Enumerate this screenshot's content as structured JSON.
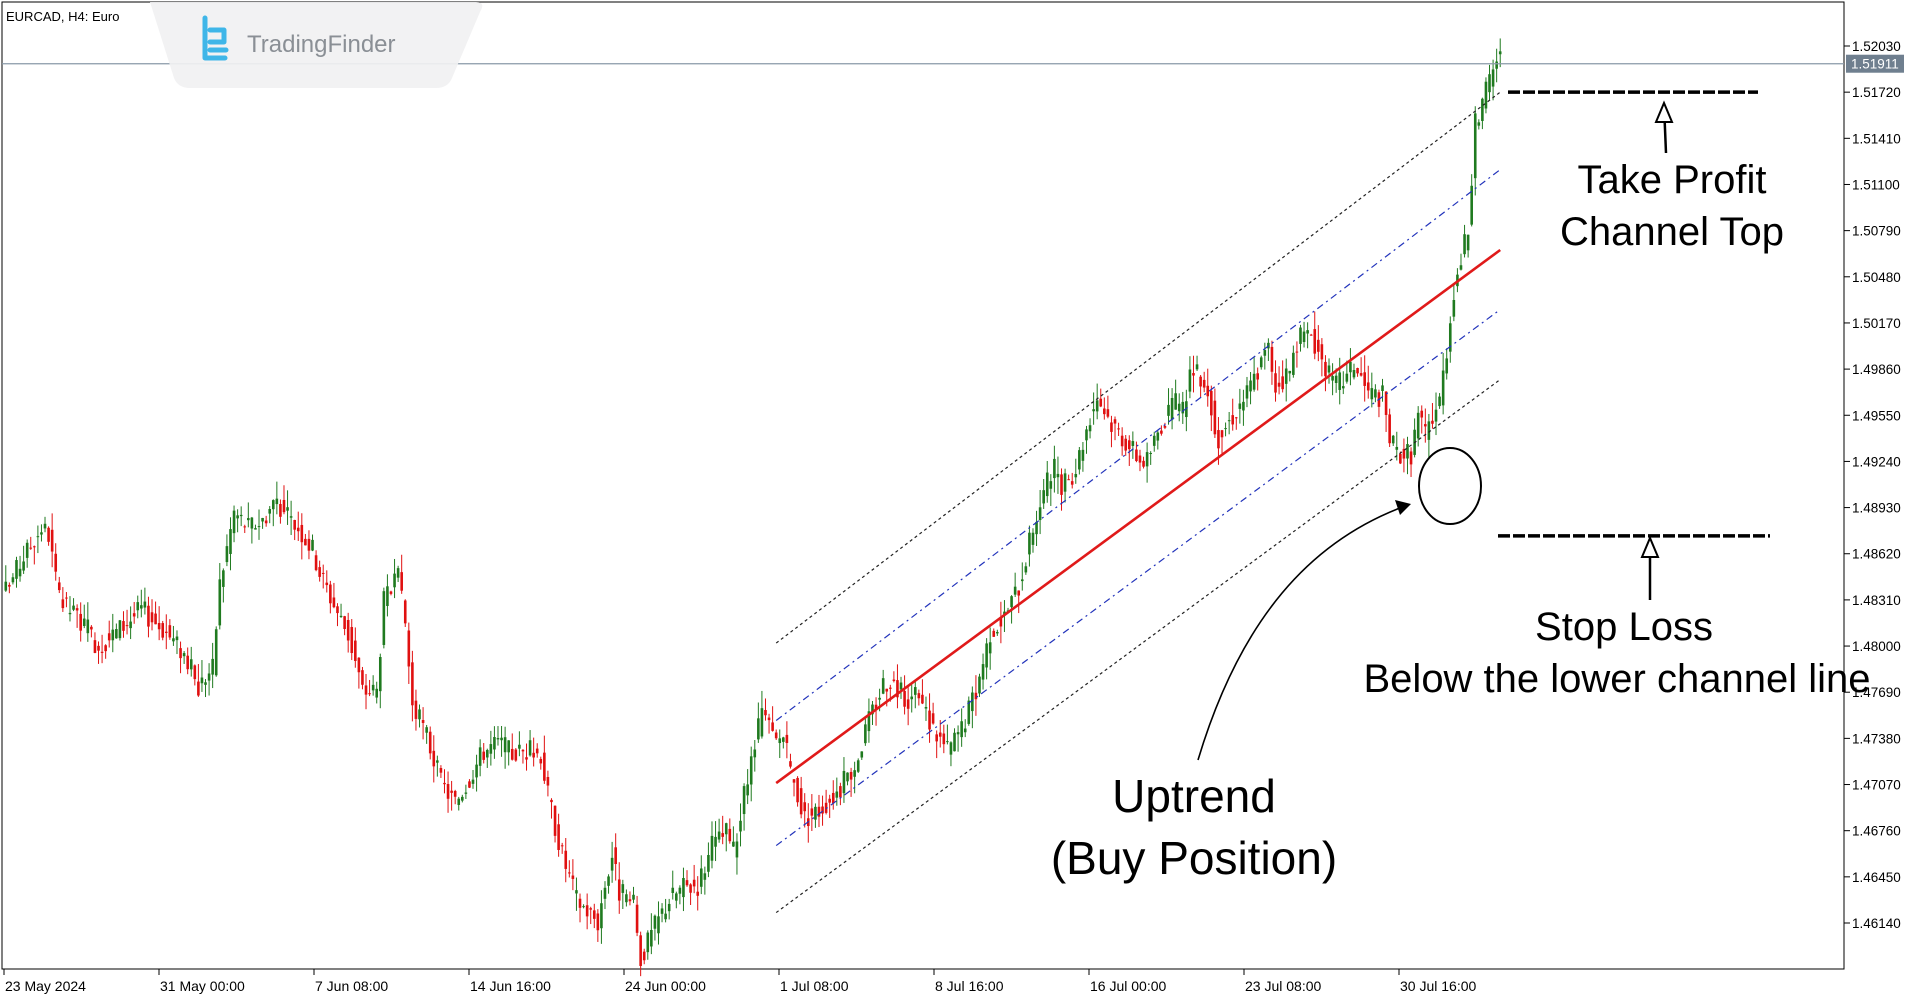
{
  "header": {
    "symbol_title": "EURCAD, H4:  Euro"
  },
  "logo": {
    "text": "TradingFinder",
    "icon": "tradingfinder-logo-icon"
  },
  "colors": {
    "bull": "#1f7a1f",
    "bear": "#e01010",
    "midline": "#e01a1a",
    "inner_channel": "#2233bb",
    "outer_channel": "#222222",
    "price_line": "#8a9aa8",
    "price_badge": "#6f7f8f",
    "logo_accent": "#3fb6e8"
  },
  "price_badge": "1.51911",
  "annotations": {
    "take_profit": [
      "Take Profit",
      "Channel Top"
    ],
    "stop_loss": [
      "Stop Loss",
      "Below the lower channel line"
    ],
    "uptrend": [
      "Uptrend",
      "(Buy Position)"
    ]
  },
  "chart_data": {
    "type": "candlestick",
    "title": "EURCAD, H4",
    "y_ticks": [
      "1.52030",
      "1.51720",
      "1.51410",
      "1.51100",
      "1.50790",
      "1.50480",
      "1.50170",
      "1.49860",
      "1.49550",
      "1.49240",
      "1.48930",
      "1.48620",
      "1.48310",
      "1.48000",
      "1.47690",
      "1.47380",
      "1.47070",
      "1.46760",
      "1.46450",
      "1.46140"
    ],
    "ylim": [
      1.4596,
      1.5232
    ],
    "x_ticks": [
      "23 May 2024",
      "31 May 00:00",
      "7 Jun 08:00",
      "14 Jun 16:00",
      "24 Jun 00:00",
      "1 Jul 08:00",
      "8 Jul 16:00",
      "16 Jul 00:00",
      "23 Jul 08:00",
      "30 Jul 16:00"
    ],
    "last_price": 1.51911,
    "close_path": [
      [
        0,
        1.4837
      ],
      [
        5,
        1.486
      ],
      [
        10,
        1.488
      ],
      [
        12,
        1.4875
      ],
      [
        15,
        1.483
      ],
      [
        20,
        1.482
      ],
      [
        26,
        1.48
      ],
      [
        32,
        1.4812
      ],
      [
        38,
        1.4825
      ],
      [
        44,
        1.4812
      ],
      [
        50,
        1.4795
      ],
      [
        54,
        1.4772
      ],
      [
        56,
        1.478
      ],
      [
        58,
        1.4785
      ],
      [
        60,
        1.4842
      ],
      [
        64,
        1.489
      ],
      [
        68,
        1.488
      ],
      [
        72,
        1.4885
      ],
      [
        76,
        1.49
      ],
      [
        78,
        1.4888
      ],
      [
        82,
        1.488
      ],
      [
        86,
        1.4865
      ],
      [
        88,
        1.485
      ],
      [
        92,
        1.4828
      ],
      [
        96,
        1.4808
      ],
      [
        98,
        1.479
      ],
      [
        100,
        1.477
      ],
      [
        104,
        1.477
      ],
      [
        106,
        1.483
      ],
      [
        110,
        1.4845
      ],
      [
        112,
        1.4815
      ],
      [
        114,
        1.476
      ],
      [
        118,
        1.474
      ],
      [
        122,
        1.4708
      ],
      [
        126,
        1.4695
      ],
      [
        130,
        1.4712
      ],
      [
        134,
        1.473
      ],
      [
        138,
        1.4735
      ],
      [
        142,
        1.4728
      ],
      [
        146,
        1.473
      ],
      [
        150,
        1.4728
      ],
      [
        152,
        1.47
      ],
      [
        156,
        1.466
      ],
      [
        160,
        1.463
      ],
      [
        166,
        1.4615
      ],
      [
        168,
        1.464
      ],
      [
        170,
        1.466
      ],
      [
        172,
        1.4635
      ],
      [
        176,
        1.4625
      ],
      [
        178,
        1.459
      ],
      [
        182,
        1.4612
      ],
      [
        186,
        1.463
      ],
      [
        190,
        1.4638
      ],
      [
        194,
        1.464
      ],
      [
        198,
        1.4665
      ],
      [
        202,
        1.4675
      ],
      [
        204,
        1.4662
      ],
      [
        208,
        1.471
      ],
      [
        212,
        1.4755
      ],
      [
        216,
        1.4735
      ],
      [
        218,
        1.474
      ],
      [
        220,
        1.4715
      ],
      [
        224,
        1.4685
      ],
      [
        228,
        1.469
      ],
      [
        234,
        1.4705
      ],
      [
        238,
        1.472
      ],
      [
        242,
        1.475
      ],
      [
        246,
        1.4775
      ],
      [
        248,
        1.4778
      ],
      [
        252,
        1.4765
      ],
      [
        256,
        1.4765
      ],
      [
        260,
        1.4745
      ],
      [
        264,
        1.473
      ],
      [
        268,
        1.4745
      ],
      [
        272,
        1.477
      ],
      [
        276,
        1.481
      ],
      [
        280,
        1.482
      ],
      [
        284,
        1.484
      ],
      [
        288,
        1.488
      ],
      [
        292,
        1.491
      ],
      [
        294,
        1.4918
      ],
      [
        296,
        1.4905
      ],
      [
        300,
        1.492
      ],
      [
        304,
        1.4955
      ],
      [
        306,
        1.4968
      ],
      [
        310,
        1.495
      ],
      [
        314,
        1.4938
      ],
      [
        318,
        1.4925
      ],
      [
        320,
        1.4925
      ],
      [
        324,
        1.495
      ],
      [
        328,
        1.4962
      ],
      [
        330,
        1.4958
      ],
      [
        332,
        1.4985
      ],
      [
        336,
        1.4978
      ],
      [
        338,
        1.496
      ],
      [
        340,
        1.494
      ],
      [
        344,
        1.4955
      ],
      [
        348,
        1.497
      ],
      [
        352,
        1.499
      ],
      [
        354,
        1.5
      ],
      [
        356,
        1.4975
      ],
      [
        360,
        1.4985
      ],
      [
        362,
        1.5005
      ],
      [
        366,
        1.501
      ],
      [
        368,
        1.4998
      ],
      [
        372,
        1.4975
      ],
      [
        376,
        1.498
      ],
      [
        378,
        1.499
      ],
      [
        382,
        1.497
      ],
      [
        386,
        1.4968
      ],
      [
        388,
        1.494
      ],
      [
        390,
        1.493
      ],
      [
        394,
        1.493
      ],
      [
        396,
        1.4955
      ],
      [
        398,
        1.4942
      ],
      [
        400,
        1.4955
      ],
      [
        402,
        1.4965
      ],
      [
        404,
        1.5
      ],
      [
        406,
        1.504
      ],
      [
        410,
        1.508
      ],
      [
        412,
        1.515
      ],
      [
        414,
        1.5165
      ],
      [
        416,
        1.518
      ],
      [
        418,
        1.5195
      ]
    ],
    "candle_count": 420,
    "series": [
      {
        "name": "",
        "type": "regression-midline",
        "start": [
          216,
          1.4708
        ],
        "end": [
          419,
          1.5066
        ]
      },
      {
        "name": "",
        "type": "channel-upper-inner",
        "start": [
          216,
          1.475
        ],
        "end": [
          419,
          1.512
        ]
      },
      {
        "name": "",
        "type": "channel-lower-inner",
        "start": [
          216,
          1.4666
        ],
        "end": [
          419,
          1.5026
        ]
      },
      {
        "name": "",
        "type": "channel-upper-outer",
        "start": [
          216,
          1.4802
        ],
        "end": [
          419,
          1.5172
        ]
      },
      {
        "name": "",
        "type": "channel-lower-outer",
        "start": [
          216,
          1.4621
        ],
        "end": [
          419,
          1.4979
        ]
      }
    ],
    "levels": {
      "take_profit": 1.5172,
      "stop_loss": 1.4874
    }
  }
}
